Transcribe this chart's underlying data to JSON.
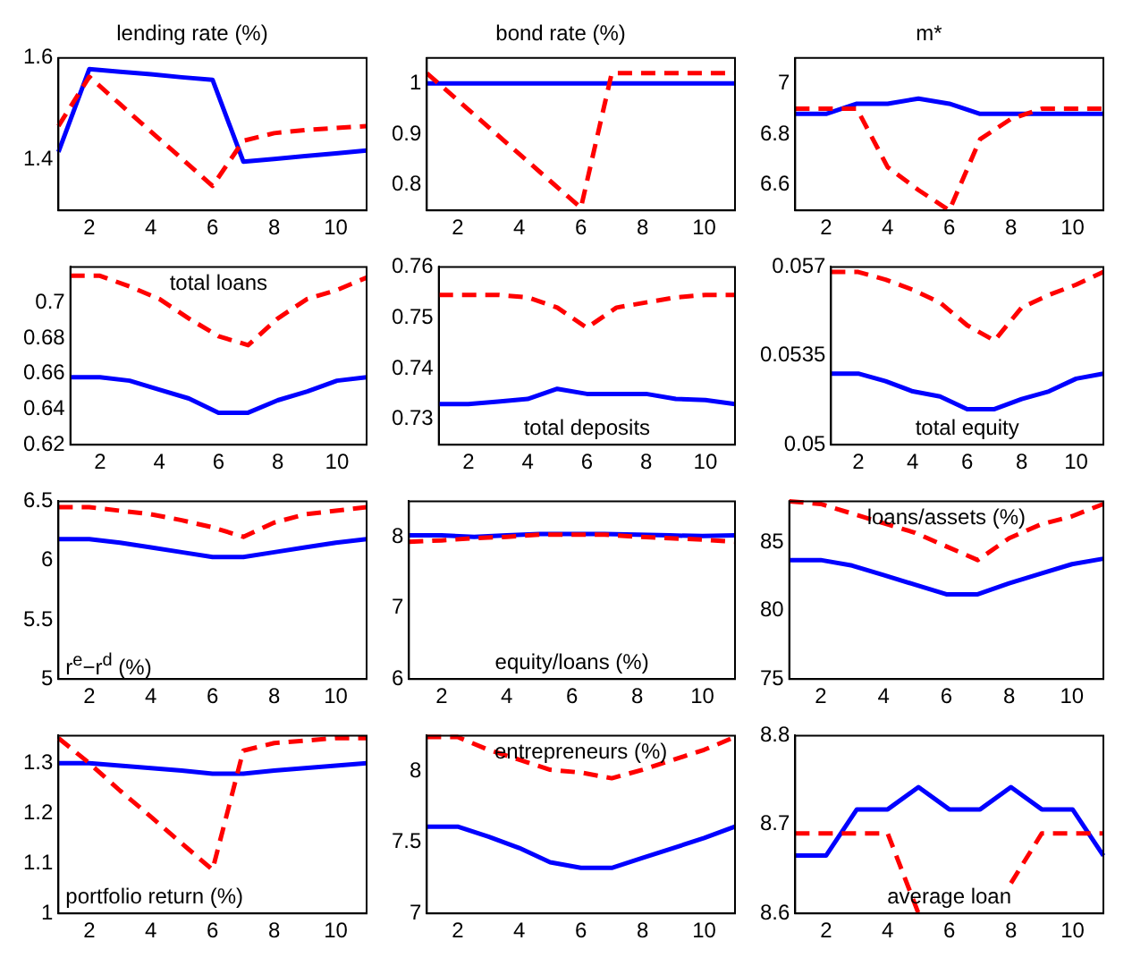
{
  "chart_data": [
    {
      "type": "line",
      "title": "lending rate (%)",
      "x": [
        1,
        2,
        3,
        4,
        5,
        6,
        7,
        8,
        9,
        10,
        11
      ],
      "xlim": [
        1,
        11
      ],
      "xticks": [
        2,
        4,
        6,
        8,
        10
      ],
      "ylim": [
        1.3,
        1.6
      ],
      "yticks": [
        1.4,
        1.6
      ],
      "grid": false,
      "legend": false,
      "series": [
        {
          "color": "#0000ff",
          "line_style": "solid",
          "values": [
            1.415,
            1.578,
            1.573,
            1.568,
            1.562,
            1.557,
            1.396,
            1.401,
            1.407,
            1.412,
            1.418
          ]
        },
        {
          "color": "#ff0000",
          "line_style": "dashed",
          "values": [
            1.466,
            1.563,
            1.509,
            1.455,
            1.402,
            1.348,
            1.437,
            1.452,
            1.458,
            1.462,
            1.466
          ]
        }
      ]
    },
    {
      "type": "line",
      "title": "bond rate (%)",
      "x": [
        1,
        2,
        3,
        4,
        5,
        6,
        7,
        8,
        9,
        10,
        11
      ],
      "xlim": [
        1,
        11
      ],
      "xticks": [
        2,
        4,
        6,
        8,
        10
      ],
      "ylim": [
        0.75,
        1.05
      ],
      "yticks": [
        0.8,
        0.9,
        1
      ],
      "grid": false,
      "legend": false,
      "series": [
        {
          "color": "#0000ff",
          "line_style": "solid",
          "values": [
            1,
            1,
            1,
            1,
            1,
            1,
            1,
            1,
            1,
            1,
            1
          ]
        },
        {
          "color": "#ff0000",
          "line_style": "dashed",
          "values": [
            1.02,
            0.967,
            0.914,
            0.861,
            0.808,
            0.755,
            1.02,
            1.02,
            1.02,
            1.02,
            1.02
          ]
        }
      ]
    },
    {
      "type": "line",
      "title": "m*",
      "x": [
        1,
        2,
        3,
        4,
        5,
        6,
        7,
        8,
        9,
        10,
        11
      ],
      "xlim": [
        1,
        11
      ],
      "xticks": [
        2,
        4,
        6,
        8,
        10
      ],
      "ylim": [
        6.5,
        7.1
      ],
      "yticks": [
        6.6,
        6.8,
        7
      ],
      "grid": false,
      "legend": false,
      "series": [
        {
          "color": "#0000ff",
          "line_style": "solid",
          "values": [
            6.88,
            6.88,
            6.92,
            6.92,
            6.94,
            6.92,
            6.88,
            6.88,
            6.88,
            6.88,
            6.88
          ]
        },
        {
          "color": "#ff0000",
          "line_style": "dashed",
          "values": [
            6.9,
            6.9,
            6.9,
            6.67,
            6.58,
            6.5,
            6.78,
            6.86,
            6.9,
            6.9,
            6.9
          ]
        }
      ]
    },
    {
      "type": "line",
      "annotations": [
        "total loans"
      ],
      "x": [
        1,
        2,
        3,
        4,
        5,
        6,
        7,
        8,
        9,
        10,
        11
      ],
      "xlim": [
        1,
        11
      ],
      "xticks": [
        2,
        4,
        6,
        8,
        10
      ],
      "ylim": [
        0.62,
        0.72
      ],
      "yticks": [
        0.62,
        0.64,
        0.66,
        0.68,
        0.7
      ],
      "grid": false,
      "legend": false,
      "series": [
        {
          "color": "#0000ff",
          "line_style": "solid",
          "values": [
            0.658,
            0.658,
            0.656,
            0.651,
            0.646,
            0.638,
            0.638,
            0.645,
            0.65,
            0.656,
            0.658
          ]
        },
        {
          "color": "#ff0000",
          "line_style": "dashed",
          "values": [
            0.715,
            0.715,
            0.709,
            0.702,
            0.691,
            0.681,
            0.676,
            0.691,
            0.702,
            0.707,
            0.714
          ]
        }
      ]
    },
    {
      "type": "line",
      "annotations": [
        "total deposits"
      ],
      "x": [
        1,
        2,
        3,
        4,
        5,
        6,
        7,
        8,
        9,
        10,
        11
      ],
      "xlim": [
        1,
        11
      ],
      "xticks": [
        2,
        4,
        6,
        8,
        10
      ],
      "ylim": [
        0.725,
        0.76
      ],
      "yticks": [
        0.73,
        0.74,
        0.75,
        0.76
      ],
      "grid": false,
      "legend": false,
      "series": [
        {
          "color": "#0000ff",
          "line_style": "solid",
          "values": [
            0.733,
            0.733,
            0.7335,
            0.734,
            0.736,
            0.735,
            0.735,
            0.735,
            0.734,
            0.7338,
            0.733
          ]
        },
        {
          "color": "#ff0000",
          "line_style": "dashed",
          "values": [
            0.7545,
            0.7545,
            0.7545,
            0.754,
            0.752,
            0.748,
            0.752,
            0.753,
            0.754,
            0.7545,
            0.7545
          ]
        }
      ]
    },
    {
      "type": "line",
      "annotations": [
        "total equity"
      ],
      "x": [
        1,
        2,
        3,
        4,
        5,
        6,
        7,
        8,
        9,
        10,
        11
      ],
      "xlim": [
        1,
        11
      ],
      "xticks": [
        2,
        4,
        6,
        8,
        10
      ],
      "ylim": [
        0.05,
        0.057
      ],
      "yticks": [
        0.05,
        0.0535,
        0.057
      ],
      "grid": false,
      "legend": false,
      "series": [
        {
          "color": "#0000ff",
          "line_style": "solid",
          "values": [
            0.0528,
            0.0528,
            0.0525,
            0.0521,
            0.0519,
            0.0514,
            0.0514,
            0.0518,
            0.0521,
            0.0526,
            0.0528
          ]
        },
        {
          "color": "#ff0000",
          "line_style": "dashed",
          "values": [
            0.0568,
            0.0568,
            0.0565,
            0.0561,
            0.0556,
            0.0547,
            0.0541,
            0.0554,
            0.0559,
            0.0563,
            0.0568
          ]
        }
      ]
    },
    {
      "type": "line",
      "annotations": [
        "r$^{e}$−r$^{d}$ (%)"
      ],
      "x": [
        1,
        2,
        3,
        4,
        5,
        6,
        7,
        8,
        9,
        10,
        11
      ],
      "xlim": [
        1,
        11
      ],
      "xticks": [
        2,
        4,
        6,
        8,
        10
      ],
      "ylim": [
        5,
        6.5
      ],
      "yticks": [
        5,
        5.5,
        6,
        6.5
      ],
      "grid": false,
      "legend": false,
      "series": [
        {
          "color": "#0000ff",
          "line_style": "solid",
          "values": [
            6.18,
            6.18,
            6.15,
            6.11,
            6.07,
            6.03,
            6.03,
            6.07,
            6.11,
            6.15,
            6.18
          ]
        },
        {
          "color": "#ff0000",
          "line_style": "dashed",
          "values": [
            6.45,
            6.45,
            6.42,
            6.39,
            6.34,
            6.28,
            6.2,
            6.32,
            6.39,
            6.42,
            6.45
          ]
        }
      ]
    },
    {
      "type": "line",
      "annotations": [
        "equity/loans (%)"
      ],
      "x": [
        1,
        2,
        3,
        4,
        5,
        6,
        7,
        8,
        9,
        10,
        11
      ],
      "xlim": [
        1,
        11
      ],
      "xticks": [
        2,
        4,
        6,
        8,
        10
      ],
      "ylim": [
        6,
        8.5
      ],
      "yticks": [
        6,
        7,
        8
      ],
      "grid": false,
      "legend": false,
      "series": [
        {
          "color": "#0000ff",
          "line_style": "solid",
          "values": [
            8.02,
            8.02,
            8.0,
            8.02,
            8.04,
            8.04,
            8.04,
            8.03,
            8.02,
            8.01,
            8.02
          ]
        },
        {
          "color": "#ff0000",
          "line_style": "dashed",
          "values": [
            7.93,
            7.95,
            7.98,
            8.0,
            8.03,
            8.03,
            8.03,
            8.0,
            7.98,
            7.96,
            7.93
          ]
        }
      ]
    },
    {
      "type": "line",
      "annotations": [
        "loans/assets (%)"
      ],
      "x": [
        1,
        2,
        3,
        4,
        5,
        6,
        7,
        8,
        9,
        10,
        11
      ],
      "xlim": [
        1,
        11
      ],
      "xticks": [
        2,
        4,
        6,
        8,
        10
      ],
      "ylim": [
        75,
        88
      ],
      "yticks": [
        75,
        80,
        85
      ],
      "grid": false,
      "legend": false,
      "series": [
        {
          "color": "#0000ff",
          "line_style": "solid",
          "values": [
            83.7,
            83.7,
            83.3,
            82.6,
            81.9,
            81.2,
            81.2,
            82.0,
            82.7,
            83.4,
            83.8
          ]
        },
        {
          "color": "#ff0000",
          "line_style": "dashed",
          "values": [
            88,
            87.8,
            87.1,
            86.4,
            85.7,
            84.7,
            83.7,
            85.3,
            86.3,
            86.9,
            87.8
          ]
        }
      ]
    },
    {
      "type": "line",
      "annotations": [
        "portfolio return (%)"
      ],
      "x": [
        1,
        2,
        3,
        4,
        5,
        6,
        7,
        8,
        9,
        10,
        11
      ],
      "xlim": [
        1,
        11
      ],
      "xticks": [
        2,
        4,
        6,
        8,
        10
      ],
      "ylim": [
        1,
        1.355
      ],
      "yticks": [
        1,
        1.1,
        1.2,
        1.3
      ],
      "grid": false,
      "legend": false,
      "series": [
        {
          "color": "#0000ff",
          "line_style": "solid",
          "values": [
            1.3,
            1.3,
            1.295,
            1.29,
            1.285,
            1.279,
            1.279,
            1.285,
            1.29,
            1.295,
            1.3
          ]
        },
        {
          "color": "#ff0000",
          "line_style": "dashed",
          "values": [
            1.35,
            1.3,
            1.245,
            1.193,
            1.14,
            1.087,
            1.325,
            1.34,
            1.345,
            1.35,
            1.35
          ]
        }
      ]
    },
    {
      "type": "line",
      "annotations": [
        "entrepreneurs (%)"
      ],
      "x": [
        1,
        2,
        3,
        4,
        5,
        6,
        7,
        8,
        9,
        10,
        11
      ],
      "xlim": [
        1,
        11
      ],
      "xticks": [
        2,
        4,
        6,
        8,
        10
      ],
      "ylim": [
        7,
        8.25
      ],
      "yticks": [
        7,
        7.5,
        8
      ],
      "grid": false,
      "legend": false,
      "series": [
        {
          "color": "#0000ff",
          "line_style": "solid",
          "values": [
            7.61,
            7.61,
            7.54,
            7.46,
            7.36,
            7.32,
            7.32,
            7.39,
            7.46,
            7.53,
            7.61
          ]
        },
        {
          "color": "#ff0000",
          "line_style": "dashed",
          "values": [
            8.24,
            8.24,
            8.15,
            8.08,
            8.01,
            7.99,
            7.95,
            8.01,
            8.08,
            8.15,
            8.24
          ]
        }
      ]
    },
    {
      "type": "line",
      "annotations": [
        "average loan"
      ],
      "x": [
        1,
        2,
        3,
        4,
        5,
        6,
        7,
        8,
        9,
        10,
        11
      ],
      "xlim": [
        1,
        11
      ],
      "xticks": [
        2,
        4,
        6,
        8,
        10
      ],
      "ylim": [
        8.6,
        8.8
      ],
      "yticks": [
        8.6,
        8.7,
        8.8
      ],
      "grid": false,
      "legend": false,
      "series": [
        {
          "color": "#0000ff",
          "line_style": "solid",
          "values": [
            8.665,
            8.665,
            8.717,
            8.717,
            8.742,
            8.717,
            8.717,
            8.742,
            8.717,
            8.717,
            8.665
          ]
        },
        {
          "color": "#ff0000",
          "line_style": "dashed",
          "values": [
            8.69,
            8.69,
            8.69,
            8.69,
            8.6,
            null,
            null,
            8.634,
            8.69,
            8.69,
            8.69
          ]
        }
      ]
    }
  ]
}
